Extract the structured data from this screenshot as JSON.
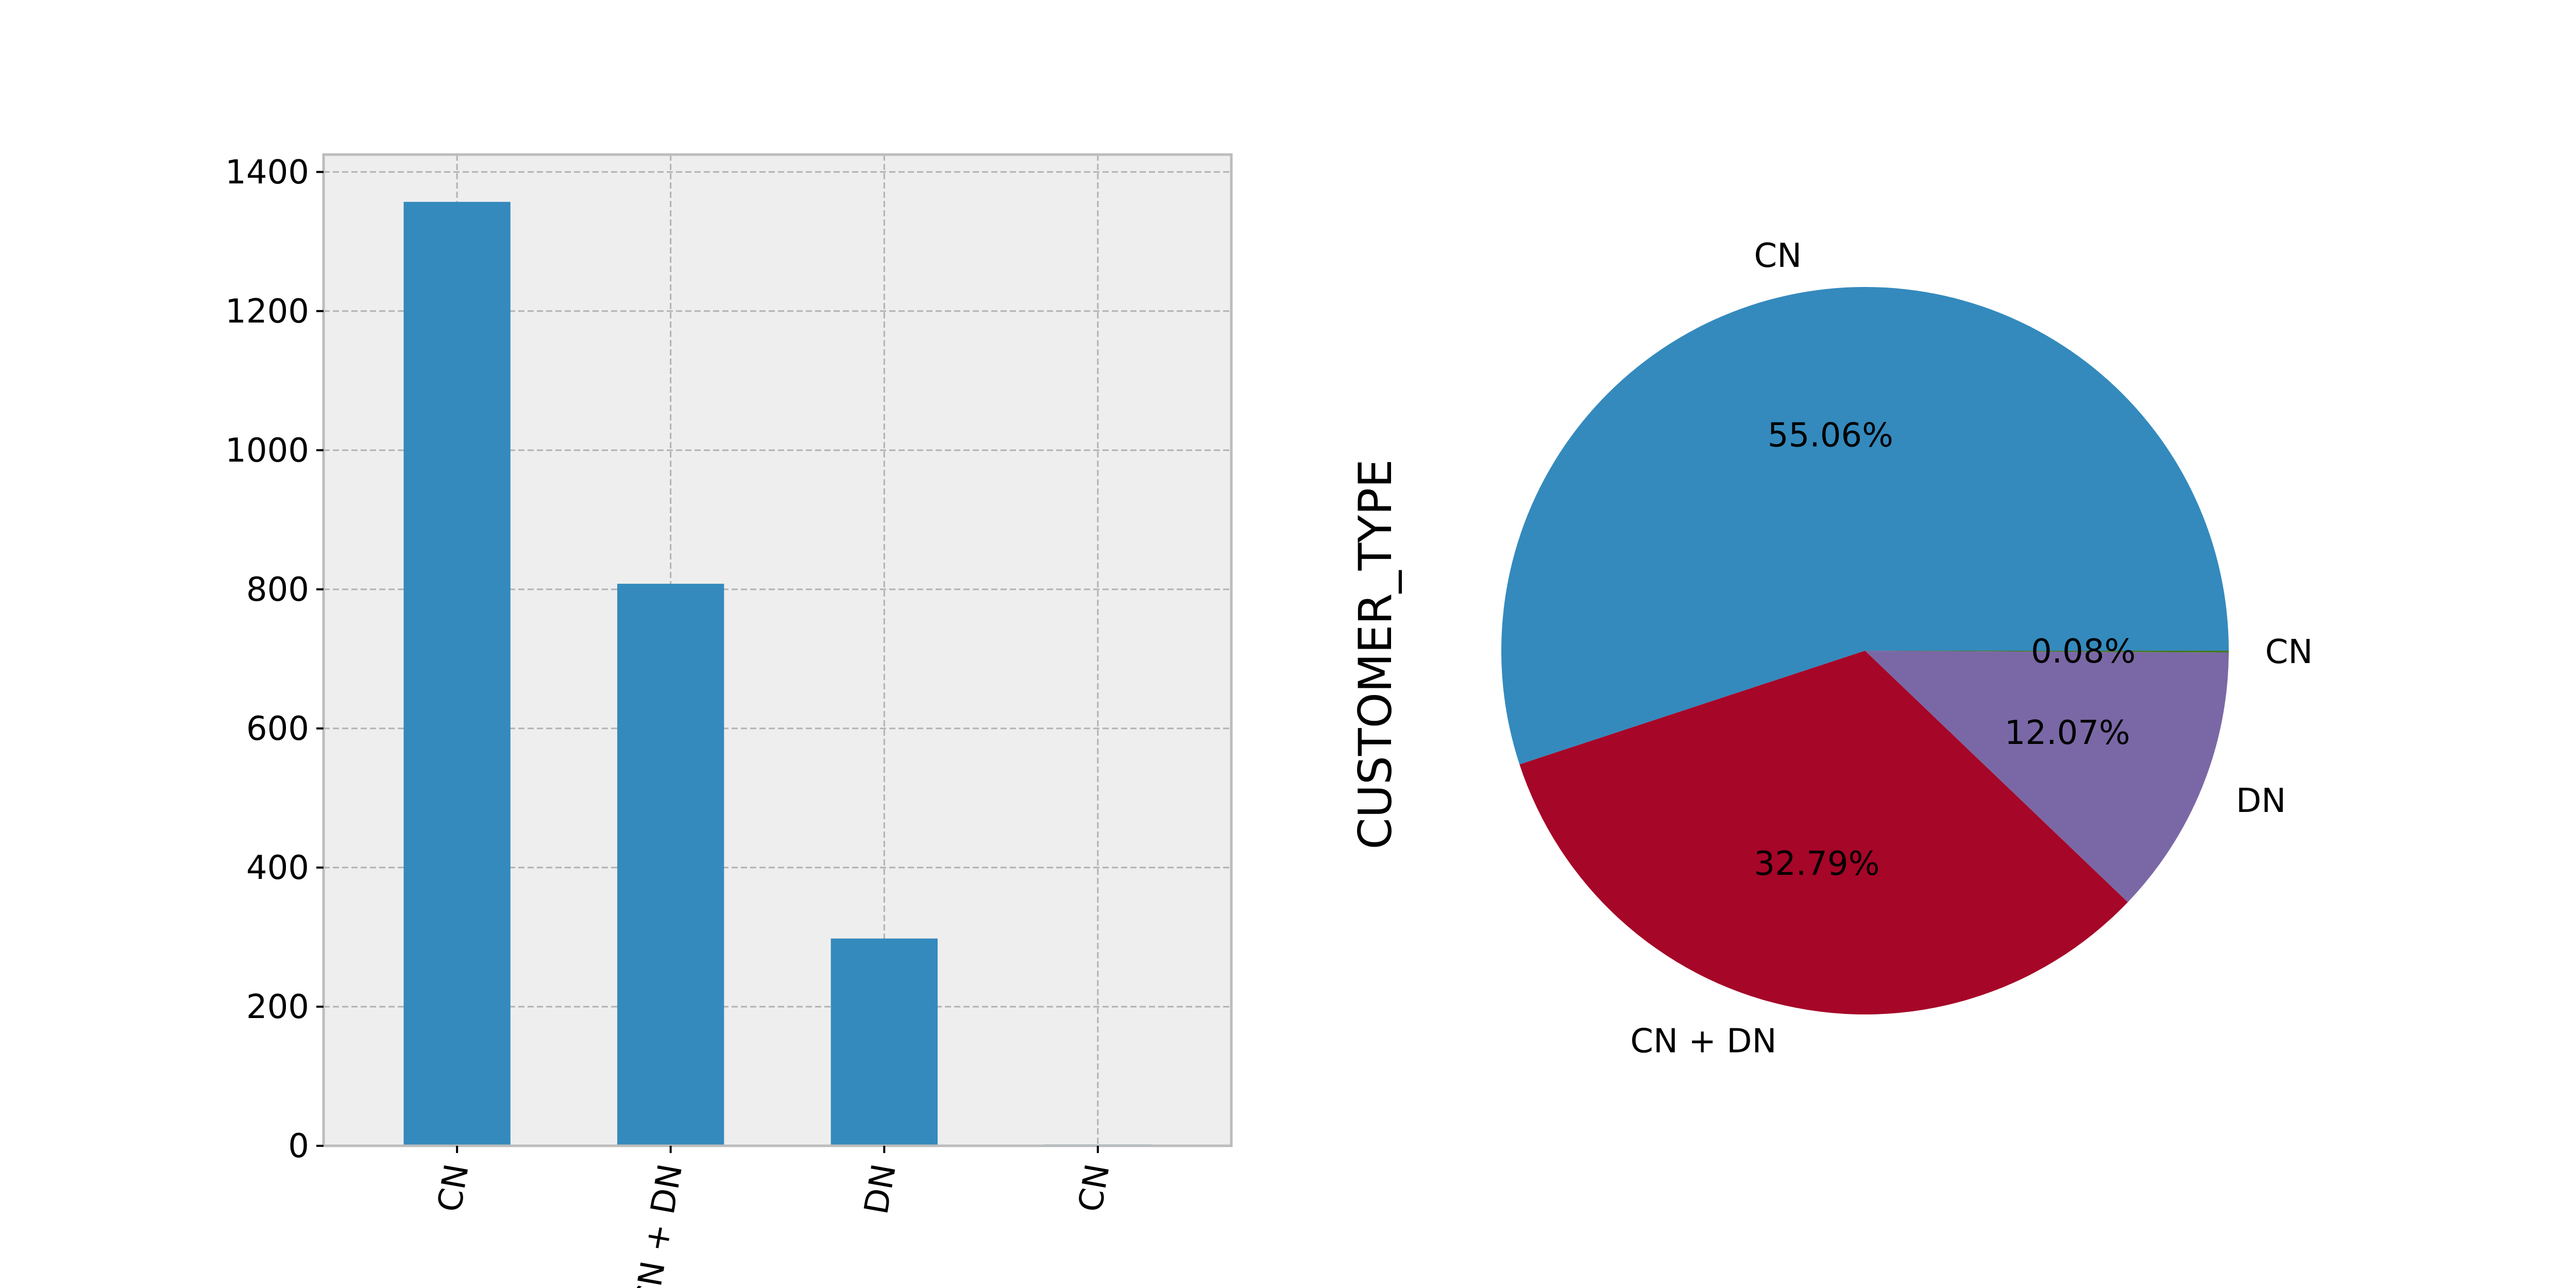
{
  "chart_data": [
    {
      "type": "bar",
      "categories": [
        "CN",
        "CN + DN",
        "DN",
        "CN"
      ],
      "values": [
        1357,
        808,
        298,
        2
      ],
      "title": "",
      "xlabel": "",
      "ylabel": "",
      "ylim": [
        0,
        1425
      ],
      "yticks": [
        0,
        200,
        400,
        600,
        800,
        1000,
        1200,
        1400
      ],
      "grid": true,
      "bar_color": "#348ABD",
      "background_color": "#EEEEEE"
    },
    {
      "type": "pie",
      "labels": [
        "CN",
        "CN + DN",
        "DN",
        "CN"
      ],
      "values": [
        55.06,
        32.79,
        12.07,
        0.08
      ],
      "value_labels": [
        "55.06%",
        "32.79%",
        "12.07%",
        "0.08%"
      ],
      "ylabel": "CUSTOMER_TYPE",
      "colors": [
        "#348ABD",
        "#A60628",
        "#7A68A6",
        "#467821"
      ]
    }
  ]
}
